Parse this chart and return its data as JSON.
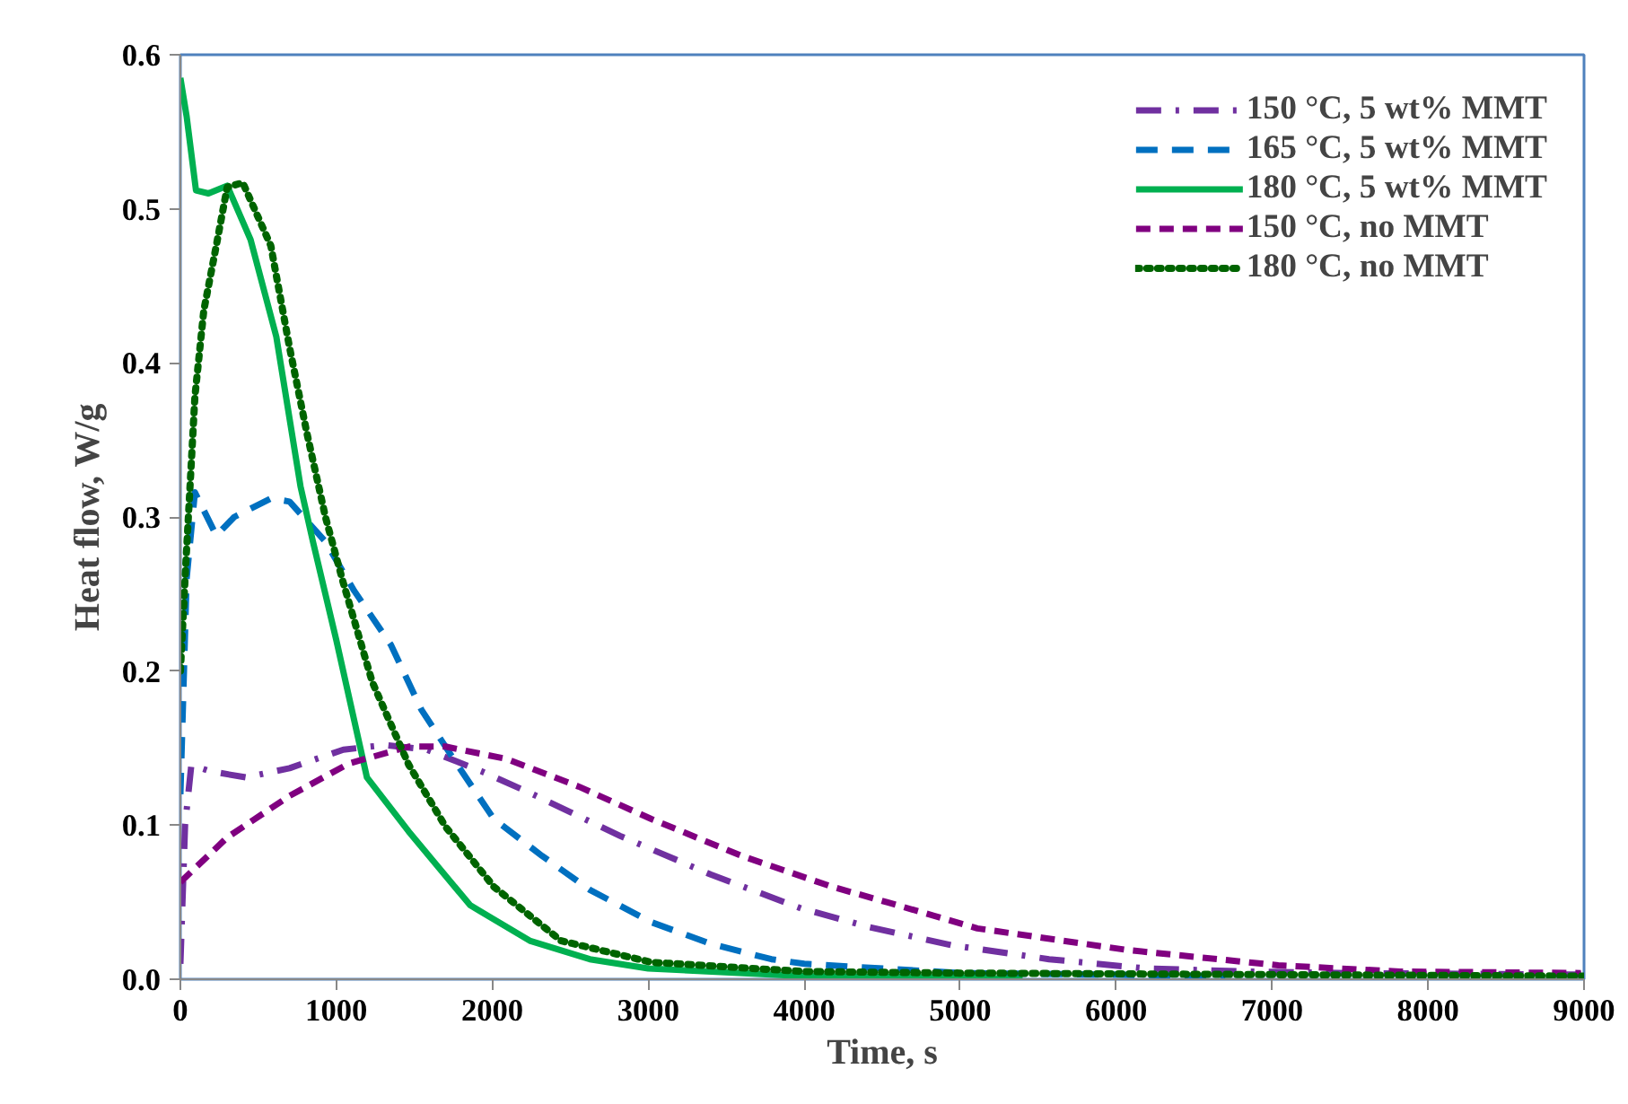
{
  "chart_data": {
    "type": "line",
    "xlabel": "Time, s",
    "ylabel": "Heat flow, W/g",
    "xlim": [
      0,
      9000
    ],
    "xticks": [
      0,
      1000,
      2000,
      3000,
      4000,
      5000,
      6000,
      7000,
      8000,
      9000
    ],
    "ylim": [
      0,
      0.6
    ],
    "yticks": [
      {
        "value": 0,
        "label": "0.0"
      },
      0.1,
      0.2,
      0.3,
      0.4,
      0.5,
      0.6
    ],
    "grid": false,
    "legend": "top right",
    "marker": "none",
    "series": [
      {
        "name": "150 °C, 5 wt% MMT",
        "color": "#7030a0",
        "line_style": "dashdot",
        "x": [
          0,
          30,
          70,
          190,
          420,
          700,
          1045,
          1310,
          1580,
          1930,
          2240,
          2820,
          3400,
          3980,
          4410,
          4950,
          5570,
          6190,
          6850,
          7500,
          9000
        ],
        "values": [
          0.01,
          0.1,
          0.139,
          0.135,
          0.131,
          0.137,
          0.149,
          0.152,
          0.149,
          0.135,
          0.121,
          0.093,
          0.068,
          0.046,
          0.034,
          0.022,
          0.013,
          0.007,
          0.005,
          0.004,
          0.003
        ]
      },
      {
        "name": "165 °C, 5 wt% MMT",
        "color": "#0070c0",
        "line_style": "dashed",
        "x": [
          0,
          40,
          93,
          230,
          345,
          580,
          700,
          930,
          1115,
          1350,
          1545,
          1777,
          2010,
          2320,
          2625,
          3020,
          3400,
          3790,
          4000,
          5000,
          6000,
          6700
        ],
        "values": [
          0.12,
          0.26,
          0.316,
          0.288,
          0.3,
          0.312,
          0.31,
          0.284,
          0.252,
          0.217,
          0.175,
          0.139,
          0.104,
          0.08,
          0.058,
          0.037,
          0.023,
          0.013,
          0.01,
          0.004,
          0.003,
          0.002
        ]
      },
      {
        "name": "180 °C, 5 wt% MMT",
        "color": "#00b050",
        "line_style": "solid",
        "x": [
          0,
          40,
          100,
          180,
          300,
          450,
          615,
          770,
          850,
          1000,
          1196,
          1463,
          1858,
          2240,
          2625,
          3000,
          4000,
          5000,
          5400
        ],
        "values": [
          0.585,
          0.56,
          0.512,
          0.51,
          0.515,
          0.48,
          0.417,
          0.32,
          0.284,
          0.22,
          0.131,
          0.096,
          0.048,
          0.025,
          0.013,
          0.007,
          0.002,
          0.001,
          0.0
        ]
      },
      {
        "name": "150 °C, no MMT",
        "color": "#800080",
        "line_style": "dashed2",
        "x": [
          0,
          300,
          700,
          1080,
          1465,
          1700,
          2090,
          2555,
          3020,
          3600,
          4180,
          4530,
          5110,
          6070,
          7040,
          7820,
          8980
        ],
        "values": [
          0.063,
          0.092,
          0.119,
          0.14,
          0.151,
          0.151,
          0.143,
          0.125,
          0.104,
          0.08,
          0.06,
          0.05,
          0.033,
          0.019,
          0.009,
          0.005,
          0.004
        ]
      },
      {
        "name": "180 °C, no MMT",
        "color": "#006400",
        "line_style": "dotted",
        "x": [
          0,
          35,
          93,
          150,
          230,
          300,
          400,
          580,
          700,
          810,
          930,
          1045,
          1230,
          1465,
          1700,
          2010,
          2440,
          3020,
          4000,
          5000,
          7000,
          9000
        ],
        "values": [
          0.2,
          0.27,
          0.378,
          0.434,
          0.476,
          0.514,
          0.517,
          0.476,
          0.41,
          0.355,
          0.3,
          0.257,
          0.193,
          0.139,
          0.099,
          0.06,
          0.025,
          0.011,
          0.005,
          0.004,
          0.003,
          0.002
        ]
      }
    ]
  }
}
